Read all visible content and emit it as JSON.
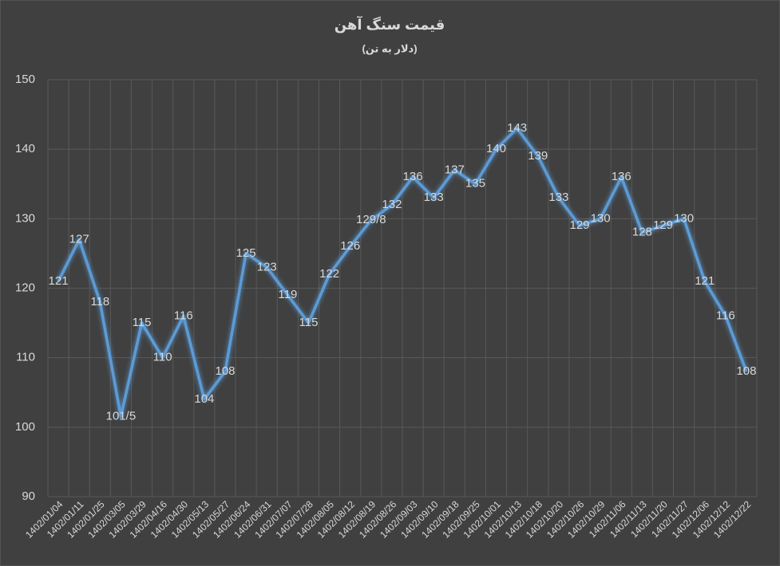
{
  "chart_data": {
    "type": "line",
    "title": "قیمت سنگ آهن",
    "subtitle": "(دلار به تن)",
    "categories": [
      "1402/01/04",
      "1402/01/11",
      "1402/01/25",
      "1402/03/05",
      "1402/03/29",
      "1402/04/16",
      "1402/04/30",
      "1402/05/13",
      "1402/05/27",
      "1402/06/24",
      "1402/06/31",
      "1402/07/07",
      "1402/07/28",
      "1402/08/05",
      "1402/08/12",
      "1402/08/19",
      "1402/08/26",
      "1402/09/03",
      "1402/09/10",
      "1402/09/18",
      "1402/09/25",
      "1402/10/01",
      "1402/10/13",
      "1402/10/18",
      "1402/10/20",
      "1402/10/26",
      "1402/10/29",
      "1402/11/06",
      "1402/11/13",
      "1402/11/20",
      "1402/11/27",
      "1402/12/06",
      "1402/12/12",
      "1402/12/22"
    ],
    "values": [
      121,
      127,
      118,
      101.5,
      115,
      110,
      116,
      104,
      108,
      125,
      123,
      119,
      115,
      122,
      126,
      129.8,
      132,
      136,
      133,
      137,
      135,
      140,
      143,
      139,
      133,
      129,
      130,
      136,
      128,
      129,
      130,
      121,
      116,
      108
    ],
    "value_labels": [
      "121",
      "127",
      "118",
      "101/5",
      "115",
      "110",
      "116",
      "104",
      "108",
      "125",
      "123",
      "119",
      "115",
      "122",
      "126",
      "129/8",
      "132",
      "136",
      "133",
      "137",
      "135",
      "140",
      "143",
      "139",
      "133",
      "129",
      "130",
      "136",
      "128",
      "129",
      "130",
      "121",
      "116",
      "108"
    ],
    "color": "#5b9bd5",
    "ylim": [
      90,
      150
    ],
    "yticks": [
      90,
      100,
      110,
      120,
      130,
      140,
      150
    ],
    "grid": true
  }
}
